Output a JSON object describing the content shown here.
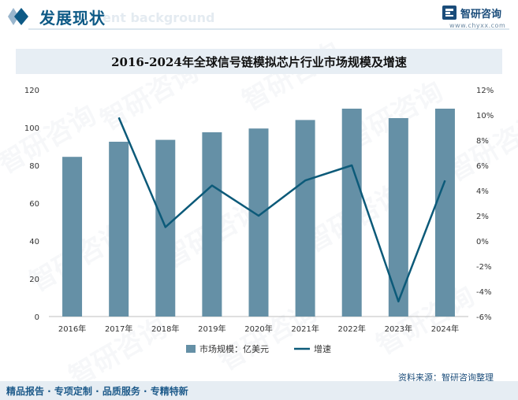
{
  "header": {
    "title": "发展现状",
    "ghost_text": "ent background"
  },
  "brand": {
    "name": "智研咨询",
    "url": "www.chyxx.com"
  },
  "watermark": "智研咨询",
  "chart_data": {
    "type": "bar",
    "title": "2016-2024年全球信号链模拟芯片行业市场规模及增速",
    "categories": [
      "2016年",
      "2017年",
      "2018年",
      "2019年",
      "2020年",
      "2021年",
      "2022年",
      "2023年",
      "2024年"
    ],
    "series": [
      {
        "name": "市场规模：亿美元",
        "type": "bar",
        "axis": "left",
        "color": "#6590a6",
        "values": [
          84.5,
          92.5,
          93.5,
          97.5,
          99.5,
          104,
          110,
          105,
          110
        ]
      },
      {
        "name": "增速",
        "type": "line",
        "axis": "right",
        "color": "#0c5a79",
        "values": [
          null,
          9.8,
          1.1,
          4.4,
          2.0,
          4.8,
          6.0,
          -4.8,
          4.8
        ]
      }
    ],
    "y_left": {
      "min": 0,
      "max": 120,
      "step": 20,
      "ticks": [
        "0",
        "20",
        "40",
        "60",
        "80",
        "100",
        "120"
      ]
    },
    "y_right": {
      "min": -6,
      "max": 12,
      "step": 2,
      "ticks": [
        "-6%",
        "-4%",
        "-2%",
        "0%",
        "2%",
        "4%",
        "6%",
        "8%",
        "10%",
        "12%"
      ]
    },
    "legend": [
      "市场规模：亿美元",
      "增速"
    ],
    "legend_position": "bottom"
  },
  "source": "资料来源：智研咨询整理",
  "footer": "精品报告 · 专项定制 · 品质服务 · 专精特新"
}
